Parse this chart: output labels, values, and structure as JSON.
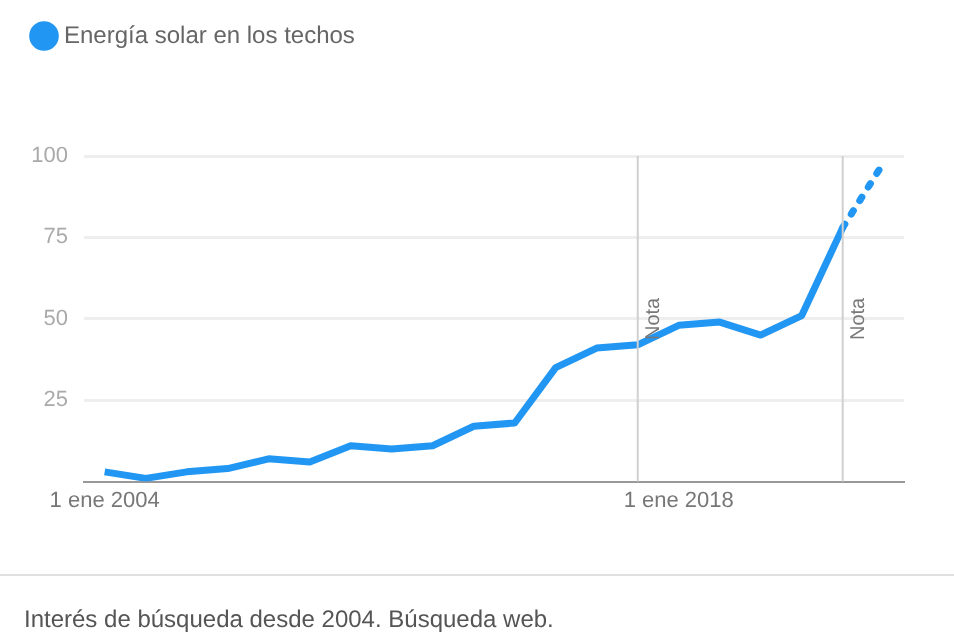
{
  "chart_data": {
    "type": "line",
    "legend": "top left",
    "grid": "y",
    "marker": "none",
    "xlim": [
      "2003-07",
      "2023-07"
    ],
    "xticks": [
      {
        "value": "2004-01-01",
        "label": "1 ene 2004"
      },
      {
        "value": "2018-01-01",
        "label": "1 ene 2018"
      }
    ],
    "ylim": [
      0,
      100
    ],
    "yticks": [
      25,
      50,
      75,
      100
    ],
    "series": [
      {
        "name": "Energía solar en los techos",
        "color": "#2196f3",
        "line_style": "solid",
        "x": [
          "2004",
          "2005",
          "2006",
          "2007",
          "2008",
          "2009",
          "2010",
          "2011",
          "2012",
          "2013",
          "2014",
          "2015",
          "2016",
          "2017",
          "2018",
          "2019",
          "2020",
          "2021",
          "2022"
        ],
        "values": [
          3,
          1,
          3,
          4,
          7,
          6,
          11,
          10,
          11,
          17,
          18,
          35,
          41,
          42,
          48,
          49,
          45,
          51,
          78
        ]
      },
      {
        "color": "#2196f3",
        "line_style": "dotted",
        "x": [
          "2022",
          "2023"
        ],
        "values": [
          78,
          98
        ]
      }
    ],
    "ref_lines": [
      {
        "axis": "x",
        "value": "2017",
        "label": "Nota",
        "color": "#d0d0d0"
      },
      {
        "axis": "x",
        "value": "2022",
        "label": "Nota",
        "color": "#d0d0d0"
      }
    ],
    "annotations": [
      "Interés de búsqueda desde 2004. Búsqueda web."
    ]
  }
}
